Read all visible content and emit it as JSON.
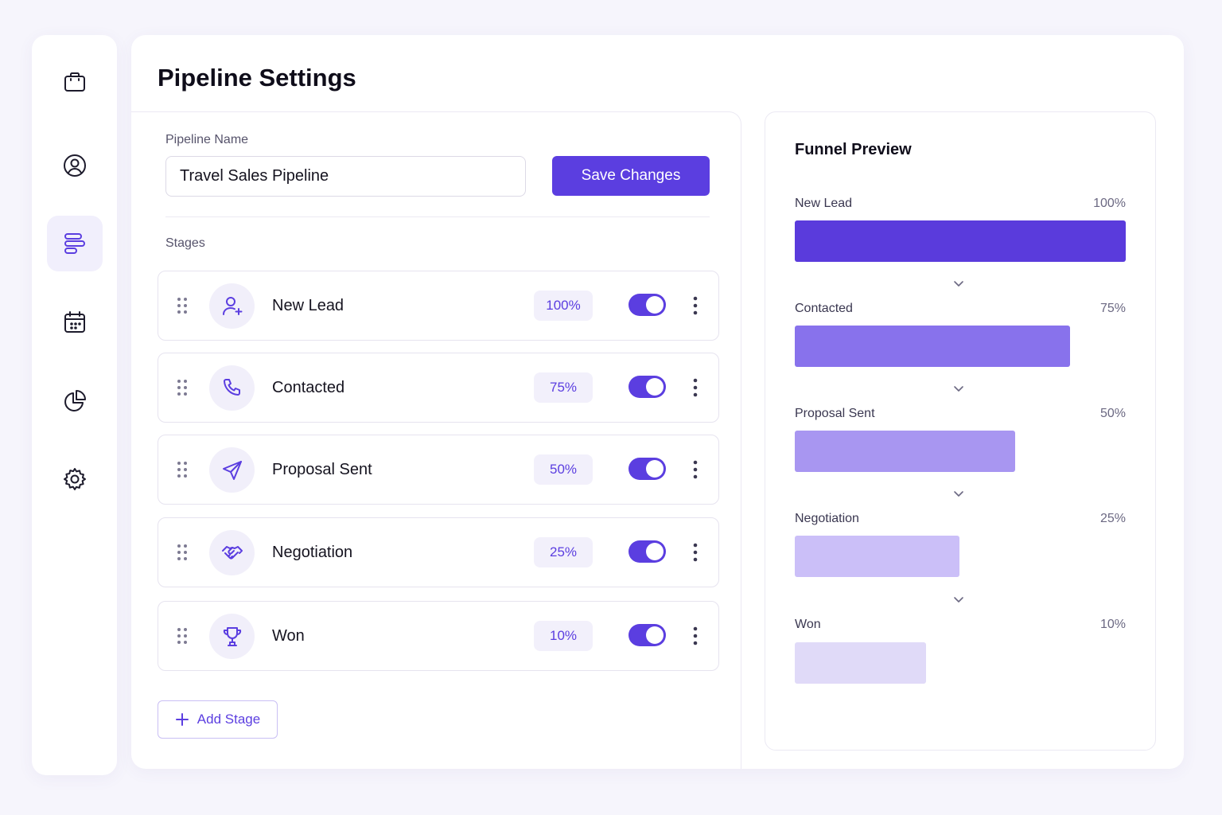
{
  "page": {
    "title": "Pipeline Settings"
  },
  "sidebar": {
    "items": [
      {
        "icon": "briefcase-icon",
        "active": false
      },
      {
        "icon": "user-circle-icon",
        "active": false
      },
      {
        "icon": "pipeline-icon",
        "active": true
      },
      {
        "icon": "calendar-icon",
        "active": false
      },
      {
        "icon": "pie-chart-icon",
        "active": false
      },
      {
        "icon": "gear-icon",
        "active": false
      }
    ]
  },
  "form": {
    "name_label": "Pipeline Name",
    "name_value": "Travel Sales Pipeline",
    "save_label": "Save Changes",
    "stages_label": "Stages",
    "add_stage_label": "Add Stage"
  },
  "stages": [
    {
      "name": "New Lead",
      "percent": "100%",
      "icon": "user-plus-icon",
      "enabled": true
    },
    {
      "name": "Contacted",
      "percent": "75%",
      "icon": "phone-icon",
      "enabled": true
    },
    {
      "name": "Proposal Sent",
      "percent": "50%",
      "icon": "send-icon",
      "enabled": true
    },
    {
      "name": "Negotiation",
      "percent": "25%",
      "icon": "handshake-icon",
      "enabled": true
    },
    {
      "name": "Won",
      "percent": "10%",
      "icon": "trophy-icon",
      "enabled": true
    }
  ],
  "funnel": {
    "title": "Funnel Preview",
    "stages": [
      {
        "label": "New Lead",
        "percent": "100%",
        "color": "#5a3bdc"
      },
      {
        "label": "Contacted",
        "percent": "75%",
        "color": "#8872ec"
      },
      {
        "label": "Proposal Sent",
        "percent": "50%",
        "color": "#a896f1"
      },
      {
        "label": "Negotiation",
        "percent": "25%",
        "color": "#cbbff8"
      },
      {
        "label": "Won",
        "percent": "10%",
        "color": "#e0daf8"
      }
    ]
  },
  "colors": {
    "accent": "#5b3ee0",
    "badge_bg": "#f2f0fb",
    "page_bg": "#f6f5fc"
  }
}
